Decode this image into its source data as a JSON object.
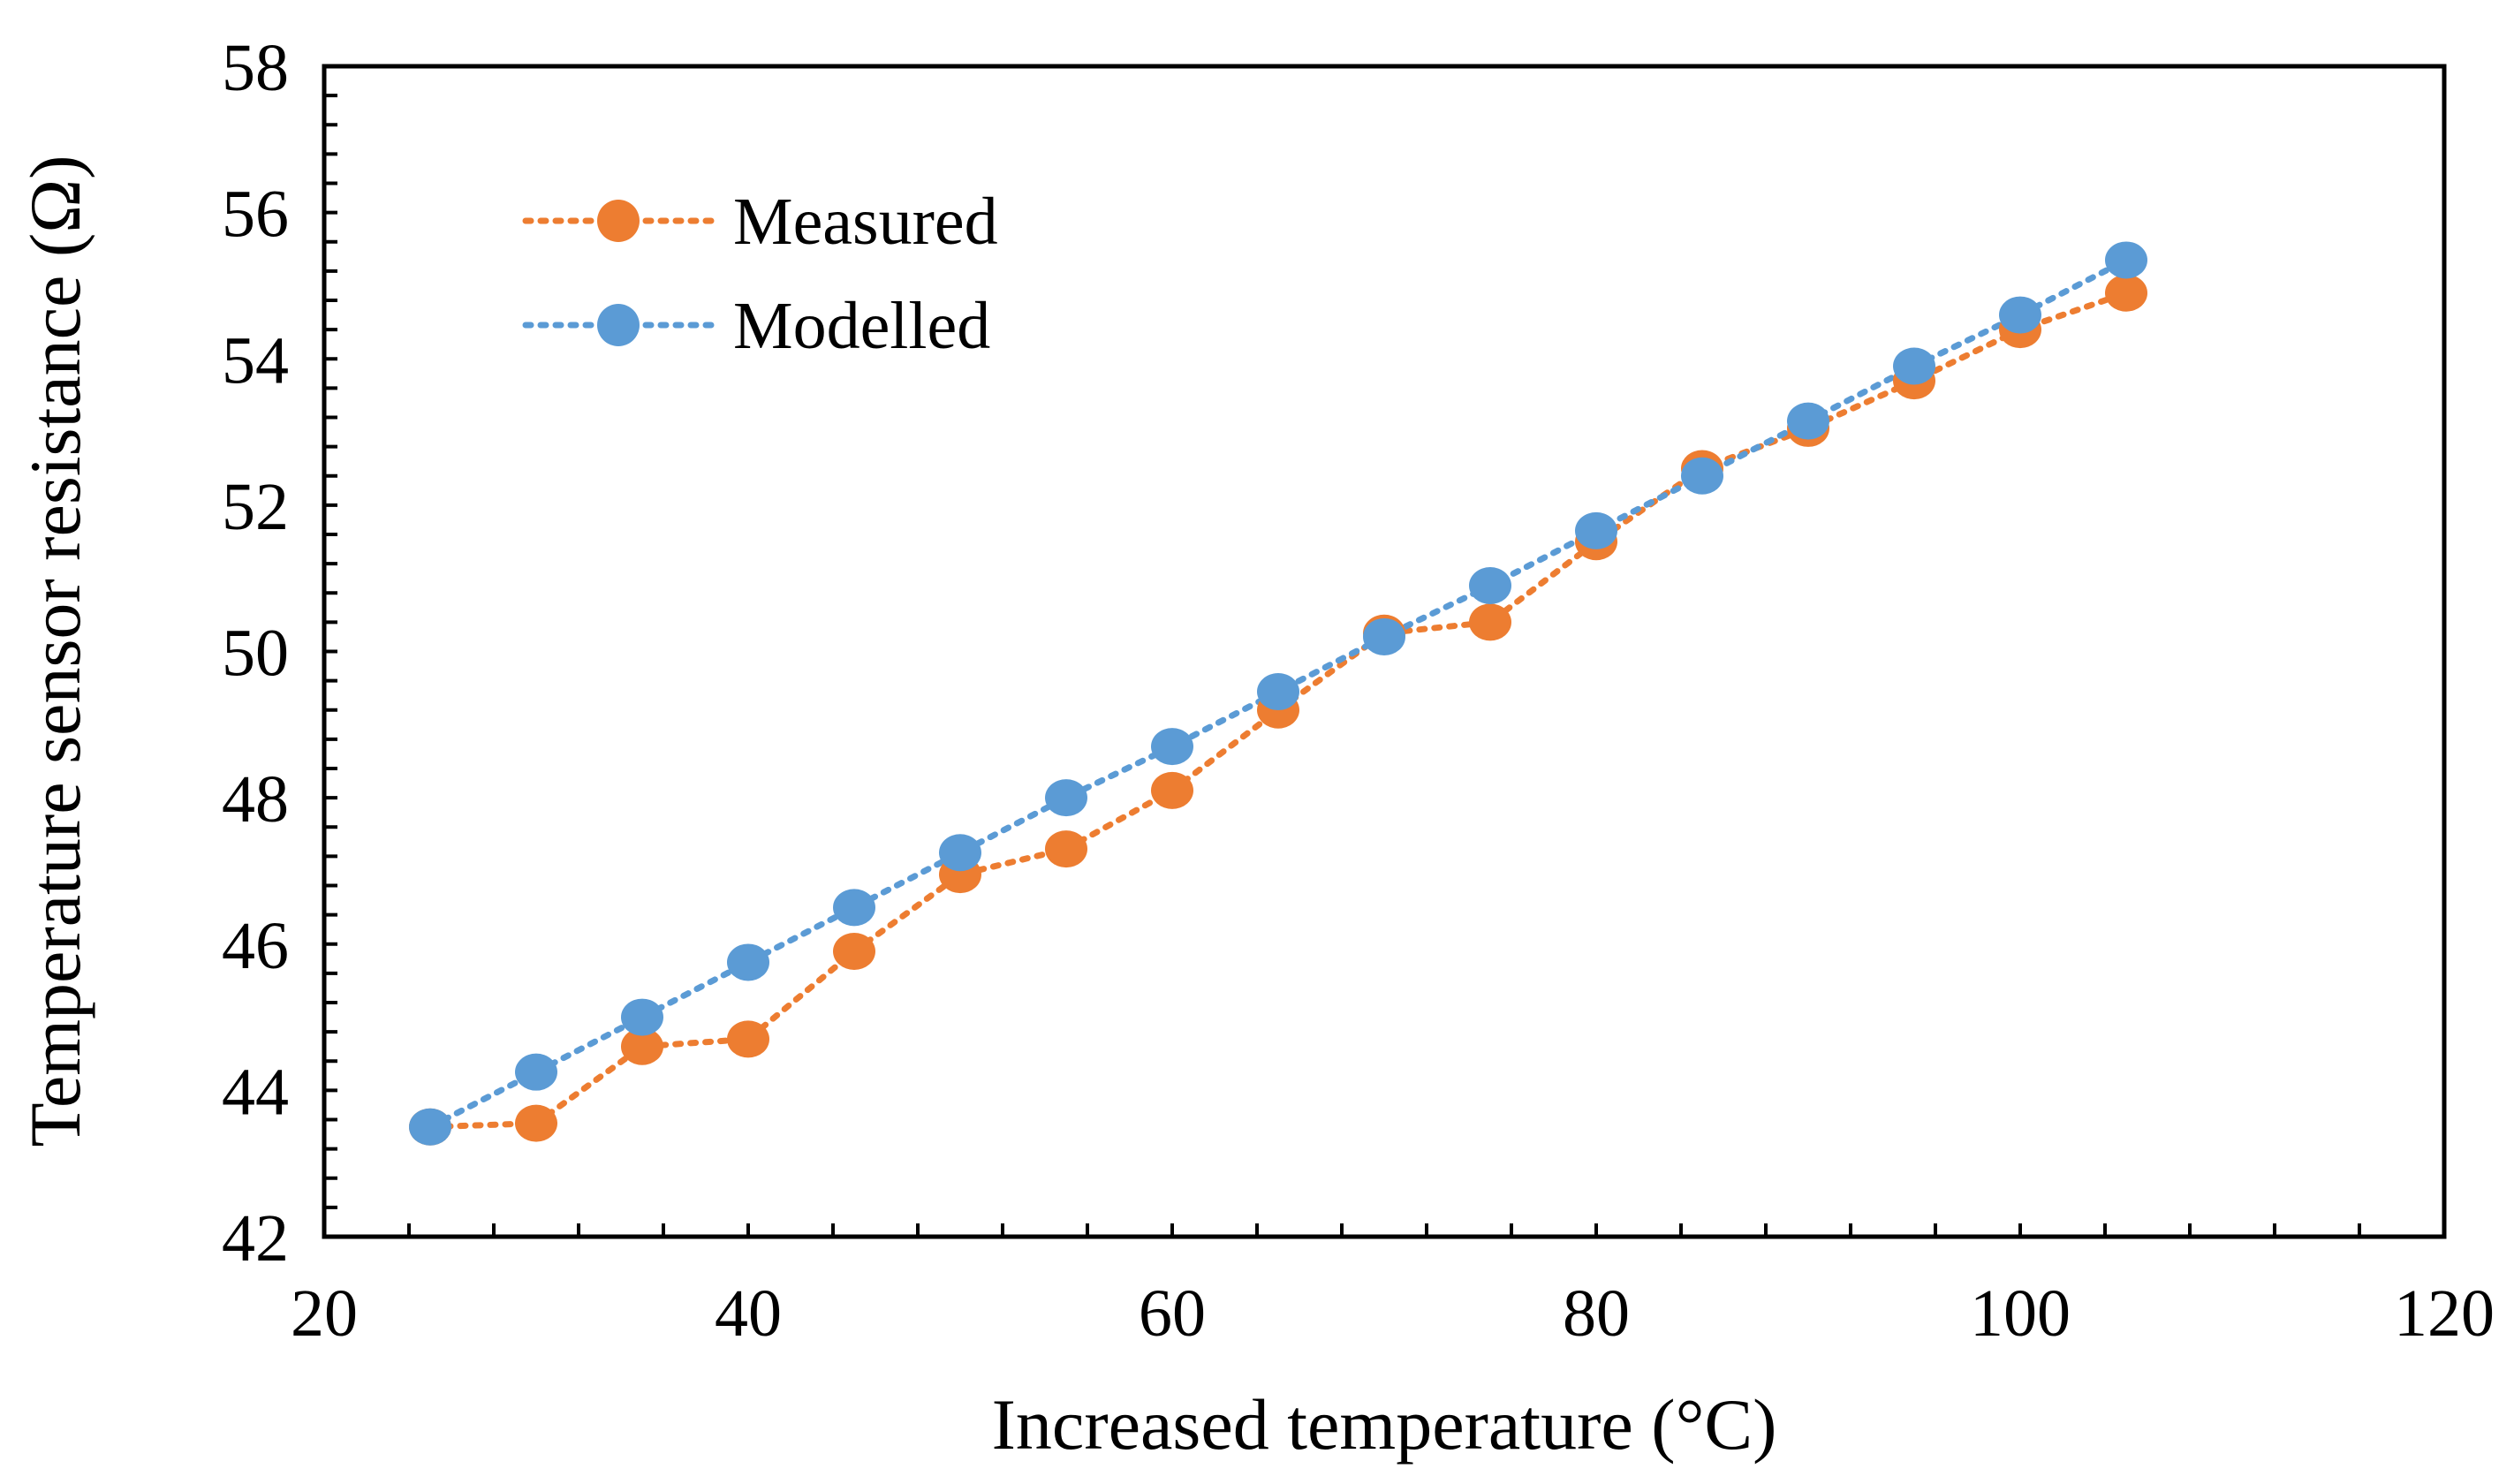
{
  "chart_data": {
    "type": "scatter",
    "title": "",
    "xlabel": "Increased temperature (°C)",
    "ylabel": "Temperature sensor resistance (Ω)",
    "xlim": [
      20,
      120
    ],
    "ylim": [
      42,
      58
    ],
    "x_ticks": [
      20,
      40,
      60,
      80,
      100,
      120
    ],
    "y_ticks": [
      42,
      44,
      46,
      48,
      50,
      52,
      54,
      56,
      58
    ],
    "x_minor_step": 4,
    "y_minor_step": 0.4,
    "grid": false,
    "legend_position": "top-left",
    "series": [
      {
        "name": "Measured",
        "color": "#ED7D31",
        "line_style": "dotted",
        "x": [
          25,
          30,
          35,
          40,
          45,
          50,
          55,
          60,
          65,
          70,
          75,
          80,
          85,
          90,
          95,
          100,
          105
        ],
        "y": [
          43.5,
          43.55,
          44.6,
          44.7,
          45.9,
          46.95,
          47.3,
          48.1,
          49.2,
          50.25,
          50.4,
          51.5,
          52.5,
          53.05,
          53.7,
          54.4,
          54.9
        ]
      },
      {
        "name": "Modelled",
        "color": "#5B9BD5",
        "line_style": "dotted",
        "x": [
          25,
          30,
          35,
          40,
          45,
          50,
          55,
          60,
          65,
          70,
          75,
          80,
          85,
          90,
          95,
          100,
          105
        ],
        "y": [
          43.5,
          44.25,
          45.0,
          45.75,
          46.5,
          47.25,
          48.0,
          48.7,
          49.45,
          50.2,
          50.9,
          51.65,
          52.4,
          53.15,
          53.9,
          54.6,
          55.35
        ]
      }
    ]
  }
}
